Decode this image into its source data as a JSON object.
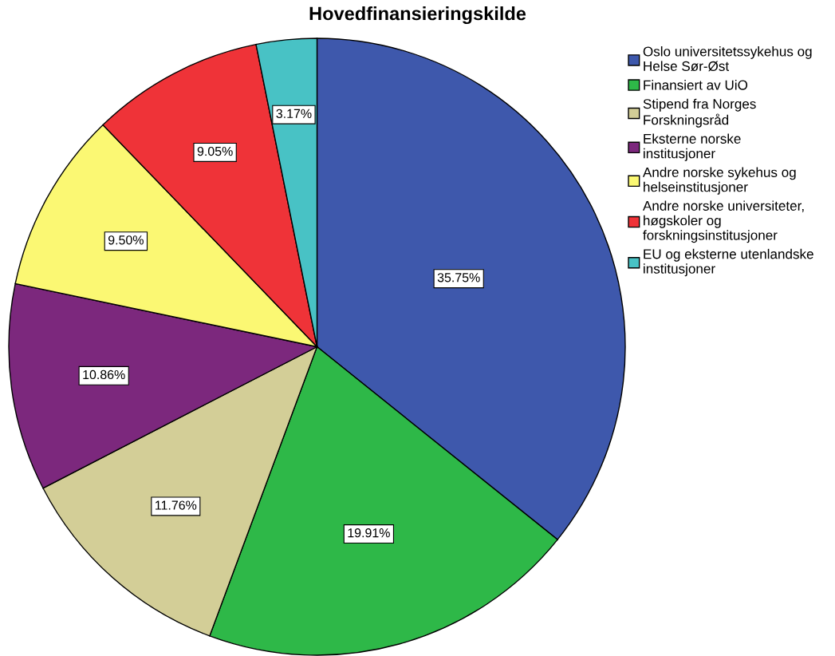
{
  "chart_data": {
    "type": "pie",
    "title": "Hovedfinansieringskilde",
    "categories": [
      "Oslo universitetssykehus og\nHelse Sør-Øst",
      "Finansiert av UiO",
      "Stipend fra Norges\nForskningsråd",
      "Eksterne norske\ninstitusjoner",
      "Andre norske sykehus og\nhelseinstitusjoner",
      "Andre norske universiteter,\nhøgskoler og\nforskningsinstitusjoner",
      "EU og eksterne utenlandske\ninstitusjoner"
    ],
    "values": [
      35.75,
      19.91,
      11.76,
      10.86,
      9.5,
      9.05,
      3.17
    ],
    "value_labels": [
      "35.75%",
      "19.91%",
      "11.76%",
      "10.86%",
      "9.50%",
      "9.05%",
      "3.17%"
    ],
    "colors": [
      "#3e58ac",
      "#2eb848",
      "#d3ce97",
      "#7c287d",
      "#fbf873",
      "#ef3338",
      "#48c2c5"
    ],
    "legend": "top right"
  }
}
